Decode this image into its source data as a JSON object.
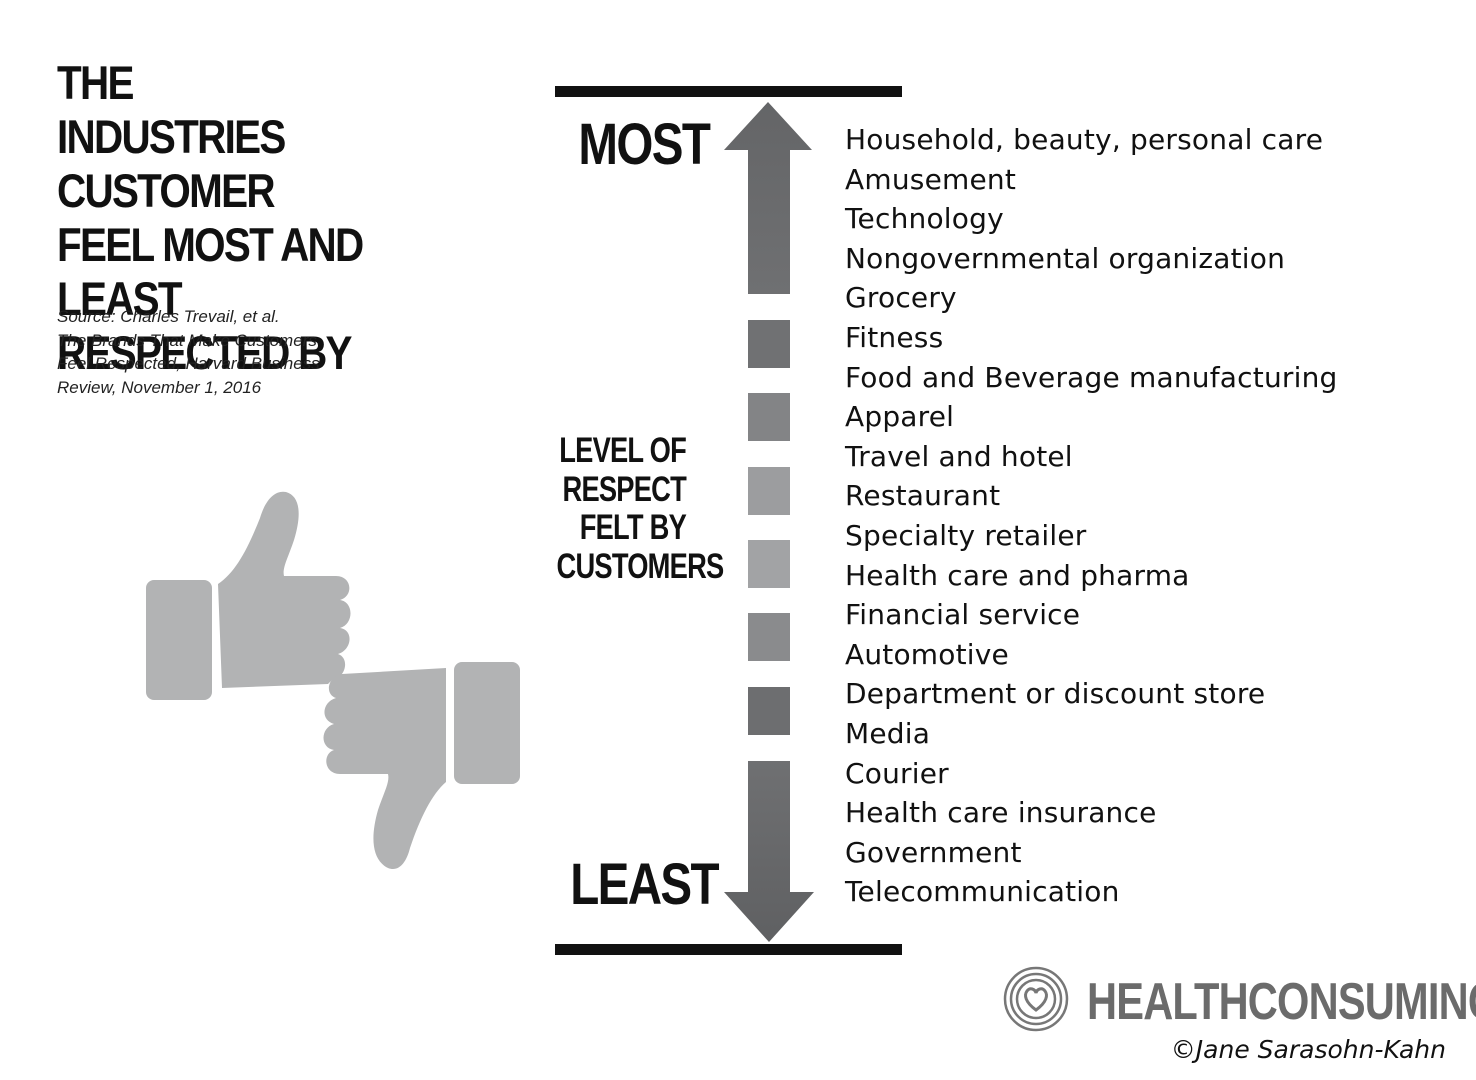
{
  "title": "THE INDUSTRIES CUSTOMER FEEL MOST AND LEAST RESPECTED BY",
  "source": {
    "lines": [
      "Source: Charles Trevail, et al.",
      "The Brands That Make Customers",
      "Feel Respected, Harvard Business",
      "Review, November 1, 2016"
    ]
  },
  "scale": {
    "top_label": "MOST",
    "bottom_label": "LEAST",
    "middle_label": "LEVEL OF RESPECT FELT BY CUSTOMERS",
    "arrow_color": "#6b6c6e",
    "segment_colors": [
      "#707173",
      "#838486",
      "#9c9d9f",
      "#a2a3a5",
      "#8a8b8d",
      "#6d6e70"
    ]
  },
  "industries": [
    "Household, beauty, personal care",
    "Amusement",
    "Technology",
    "Nongovernmental organization",
    "Grocery",
    "Fitness",
    "Food and Beverage manufacturing",
    "Apparel",
    "Travel and hotel",
    "Restaurant",
    "Specialty retailer",
    "Health care and pharma",
    "Financial service",
    "Automotive",
    "Department or discount store",
    "Media",
    "Courier",
    "Health care insurance",
    "Government",
    "Telecommunication"
  ],
  "icons": {
    "thumbs_up": "thumbs-up-icon",
    "thumbs_down": "thumbs-down-icon",
    "logo": "heart-rings-icon",
    "hand_color": "#b2b3b4"
  },
  "brand": {
    "name": "HEALTHCONSUMING",
    "copyright": "©Jane Sarasohn-Kahn"
  }
}
